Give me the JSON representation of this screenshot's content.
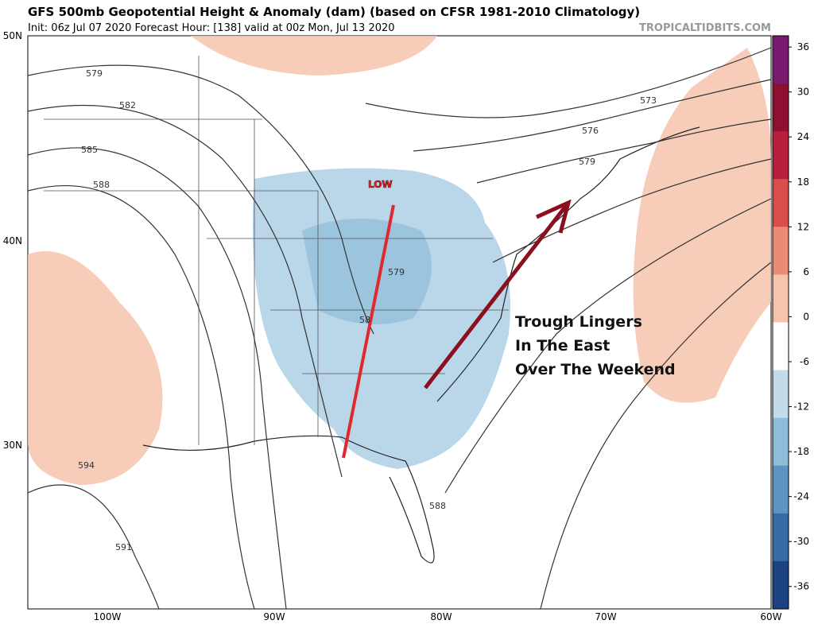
{
  "header": {
    "title": "GFS 500mb Geopotential Height & Anomaly (dam) (based on CFSR 1981-2010 Climatology)",
    "subtitle": "Init: 06z Jul 07 2020   Forecast Hour: [138]   valid at 00z Mon, Jul 13 2020",
    "source": "TROPICALTIDBITS.COM"
  },
  "map": {
    "lat_labels": [
      "50N",
      "40N",
      "30N"
    ],
    "lon_labels": [
      "100W",
      "90W",
      "80W",
      "70W",
      "60W"
    ],
    "contour_labels": [
      "579",
      "582",
      "585",
      "588",
      "594",
      "591",
      "588",
      "573",
      "576",
      "579",
      "579",
      "58"
    ],
    "annotations": {
      "low": "LOW",
      "note": [
        "Trough Lingers",
        "In The East",
        "Over The Weekend"
      ]
    }
  },
  "colorbar": {
    "ticks": [
      36,
      30,
      24,
      18,
      12,
      6,
      0,
      -6,
      -12,
      -18,
      -24,
      -30,
      -36
    ],
    "colors": [
      "#7a1a6e",
      "#8e1030",
      "#b81f3c",
      "#d94d4d",
      "#ec8a78",
      "#f6c4ad",
      "#ffffff",
      "#c3dcea",
      "#8fbcd9",
      "#5d95c2",
      "#356ca6",
      "#1c4283"
    ]
  }
}
